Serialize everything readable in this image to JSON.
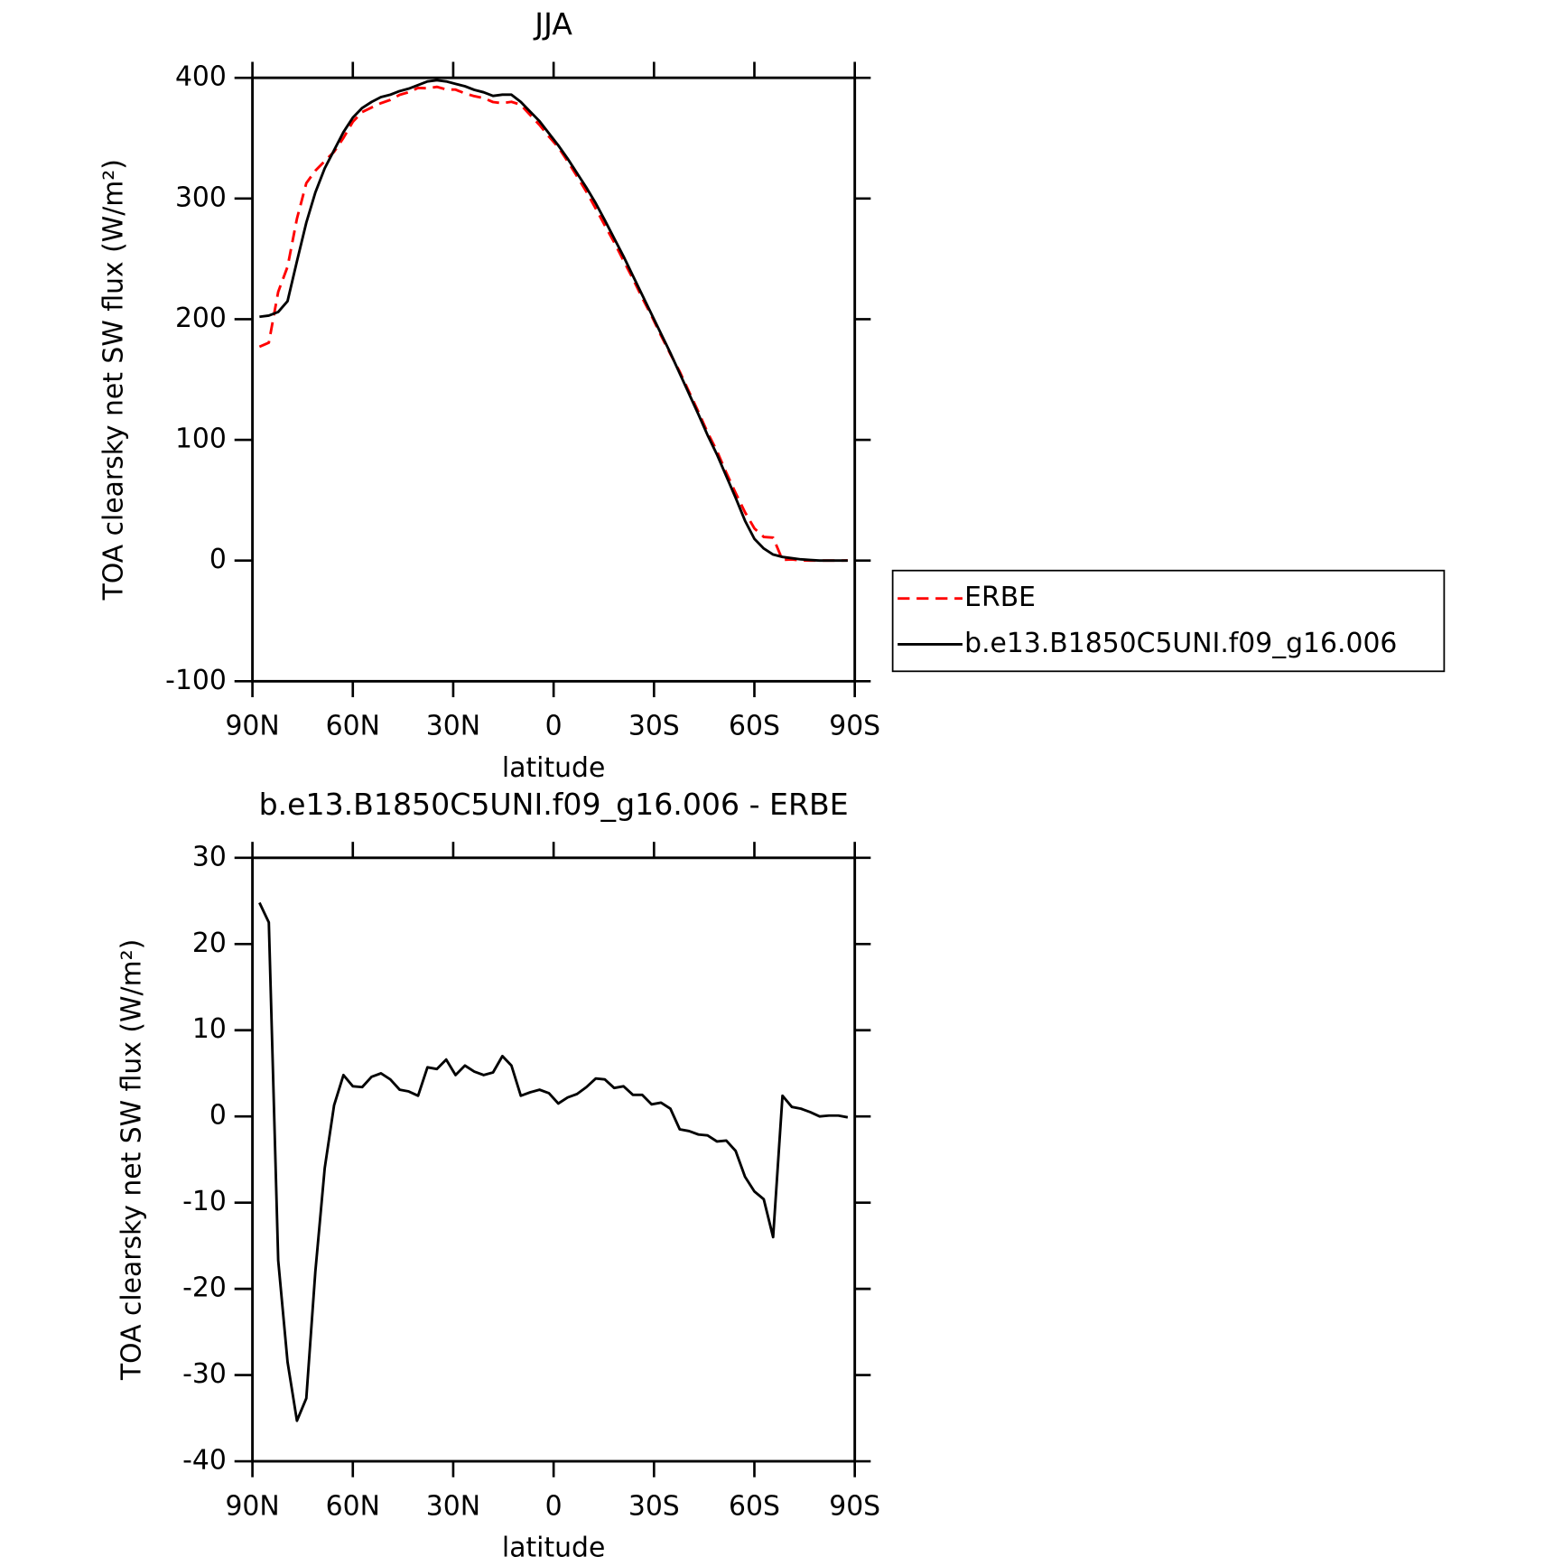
{
  "chart_data": [
    {
      "type": "line",
      "title": "JJA",
      "xlabel": "latitude",
      "ylabel": "TOA clearsky net SW flux (W/m²)",
      "x": [
        87.9,
        85.1,
        82.3,
        79.5,
        76.7,
        73.9,
        71.2,
        68.4,
        65.6,
        62.8,
        60.0,
        57.2,
        54.4,
        51.6,
        48.8,
        46.0,
        43.3,
        40.5,
        37.7,
        34.9,
        32.1,
        29.3,
        26.5,
        23.7,
        20.9,
        18.1,
        15.3,
        12.6,
        9.8,
        7.0,
        4.2,
        1.4,
        -1.4,
        -4.2,
        -7.0,
        -9.8,
        -12.6,
        -15.3,
        -18.1,
        -20.9,
        -23.7,
        -26.5,
        -29.3,
        -32.1,
        -34.9,
        -37.7,
        -40.5,
        -43.3,
        -46.0,
        -48.8,
        -51.6,
        -54.4,
        -57.2,
        -60.0,
        -62.8,
        -65.6,
        -68.4,
        -71.2,
        -73.9,
        -76.7,
        -79.5,
        -82.3,
        -85.1,
        -87.9
      ],
      "series": [
        {
          "name": "ERBE",
          "color": "#ff0000",
          "linestyle": "dashed",
          "values": [
            177.2,
            180.5,
            222.7,
            243.5,
            283.3,
            312.7,
            323,
            331,
            338.7,
            350.2,
            363.5,
            371.6,
            375.4,
            379,
            381.7,
            385.9,
            388.1,
            391.6,
            391.3,
            392.5,
            390.4,
            390.2,
            387.1,
            384.8,
            383.2,
            379.9,
            379,
            380.1,
            377.6,
            369.2,
            360.9,
            351.3,
            342.5,
            330.8,
            318.4,
            305.6,
            291.6,
            277.7,
            263.7,
            248.5,
            233.5,
            217.5,
            202.6,
            186.4,
            171.1,
            156.5,
            139.7,
            123.1,
            106.2,
            90.9,
            72.8,
            56,
            40,
            26.7,
            19.6,
            19,
            0.6,
            0.9,
            0.1,
            0,
            0,
            0,
            0,
            0.1
          ]
        },
        {
          "name": "b.e13.B1850C5UNI.f09_g16.006",
          "color": "#000000",
          "linestyle": "solid",
          "values": [
            202,
            203,
            206,
            215,
            248,
            280,
            305,
            325,
            340,
            355,
            367,
            375,
            380,
            384,
            386,
            389,
            391,
            394,
            397,
            398,
            397,
            395,
            393,
            390,
            388,
            385,
            386,
            386,
            380,
            372,
            364,
            354,
            344,
            333,
            321,
            309,
            296,
            282,
            267,
            252,
            236,
            220,
            204,
            188,
            172,
            155,
            138,
            121,
            104,
            88,
            70,
            52,
            33,
            18,
            10,
            5,
            3,
            2,
            1,
            0.5,
            0,
            0,
            0,
            0
          ]
        }
      ],
      "xlim": [
        90,
        -90
      ],
      "xticks": [
        {
          "value": 90,
          "label": "90N"
        },
        {
          "value": 60,
          "label": "60N"
        },
        {
          "value": 30,
          "label": "30N"
        },
        0,
        {
          "value": -30,
          "label": "30S"
        },
        {
          "value": -60,
          "label": "60S"
        },
        {
          "value": -90,
          "label": "90S"
        }
      ],
      "ylim": [
        -100,
        400
      ],
      "yticks": [
        -100,
        0,
        100,
        200,
        300,
        400
      ],
      "legend": "right"
    },
    {
      "type": "line",
      "title": "b.e13.B1850C5UNI.f09_g16.006 - ERBE",
      "xlabel": "latitude",
      "ylabel": "TOA clearsky net SW flux (W/m²)",
      "x": [
        87.9,
        85.1,
        82.3,
        79.5,
        76.7,
        73.9,
        71.2,
        68.4,
        65.6,
        62.8,
        60.0,
        57.2,
        54.4,
        51.6,
        48.8,
        46.0,
        43.3,
        40.5,
        37.7,
        34.9,
        32.1,
        29.3,
        26.5,
        23.7,
        20.9,
        18.1,
        15.3,
        12.6,
        9.8,
        7.0,
        4.2,
        1.4,
        -1.4,
        -4.2,
        -7.0,
        -9.8,
        -12.6,
        -15.3,
        -18.1,
        -20.9,
        -23.7,
        -26.5,
        -29.3,
        -32.1,
        -34.9,
        -37.7,
        -40.5,
        -43.3,
        -46.0,
        -48.8,
        -51.6,
        -54.4,
        -57.2,
        -60.0,
        -62.8,
        -65.6,
        -68.4,
        -71.2,
        -73.9,
        -76.7,
        -79.5,
        -82.3,
        -85.1,
        -87.9
      ],
      "series": [
        {
          "color": "#000000",
          "linestyle": "solid",
          "values": [
            24.8,
            22.5,
            -16.7,
            -28.5,
            -35.3,
            -32.7,
            -18,
            -6,
            1.3,
            4.8,
            3.5,
            3.4,
            4.6,
            5.0,
            4.3,
            3.1,
            2.9,
            2.4,
            5.7,
            5.5,
            6.6,
            4.8,
            5.9,
            5.2,
            4.8,
            5.1,
            7.0,
            5.9,
            2.4,
            2.8,
            3.1,
            2.7,
            1.5,
            2.2,
            2.6,
            3.4,
            4.4,
            4.3,
            3.3,
            3.5,
            2.5,
            2.5,
            1.4,
            1.6,
            0.9,
            -1.5,
            -1.7,
            -2.1,
            -2.2,
            -2.9,
            -2.8,
            -4.0,
            -7.0,
            -8.7,
            -9.6,
            -14.0,
            2.4,
            1.1,
            0.9,
            0.5,
            0,
            0.1,
            0.1,
            -0.1
          ]
        }
      ],
      "xlim": [
        90,
        -90
      ],
      "xticks": [
        {
          "value": 90,
          "label": "90N"
        },
        {
          "value": 60,
          "label": "60N"
        },
        {
          "value": 30,
          "label": "30N"
        },
        0,
        {
          "value": -30,
          "label": "30S"
        },
        {
          "value": -60,
          "label": "60S"
        },
        {
          "value": -90,
          "label": "90S"
        }
      ],
      "ylim": [
        -40,
        30
      ],
      "yticks": [
        -40,
        -30,
        -20,
        -10,
        0,
        10,
        20,
        30
      ]
    }
  ]
}
